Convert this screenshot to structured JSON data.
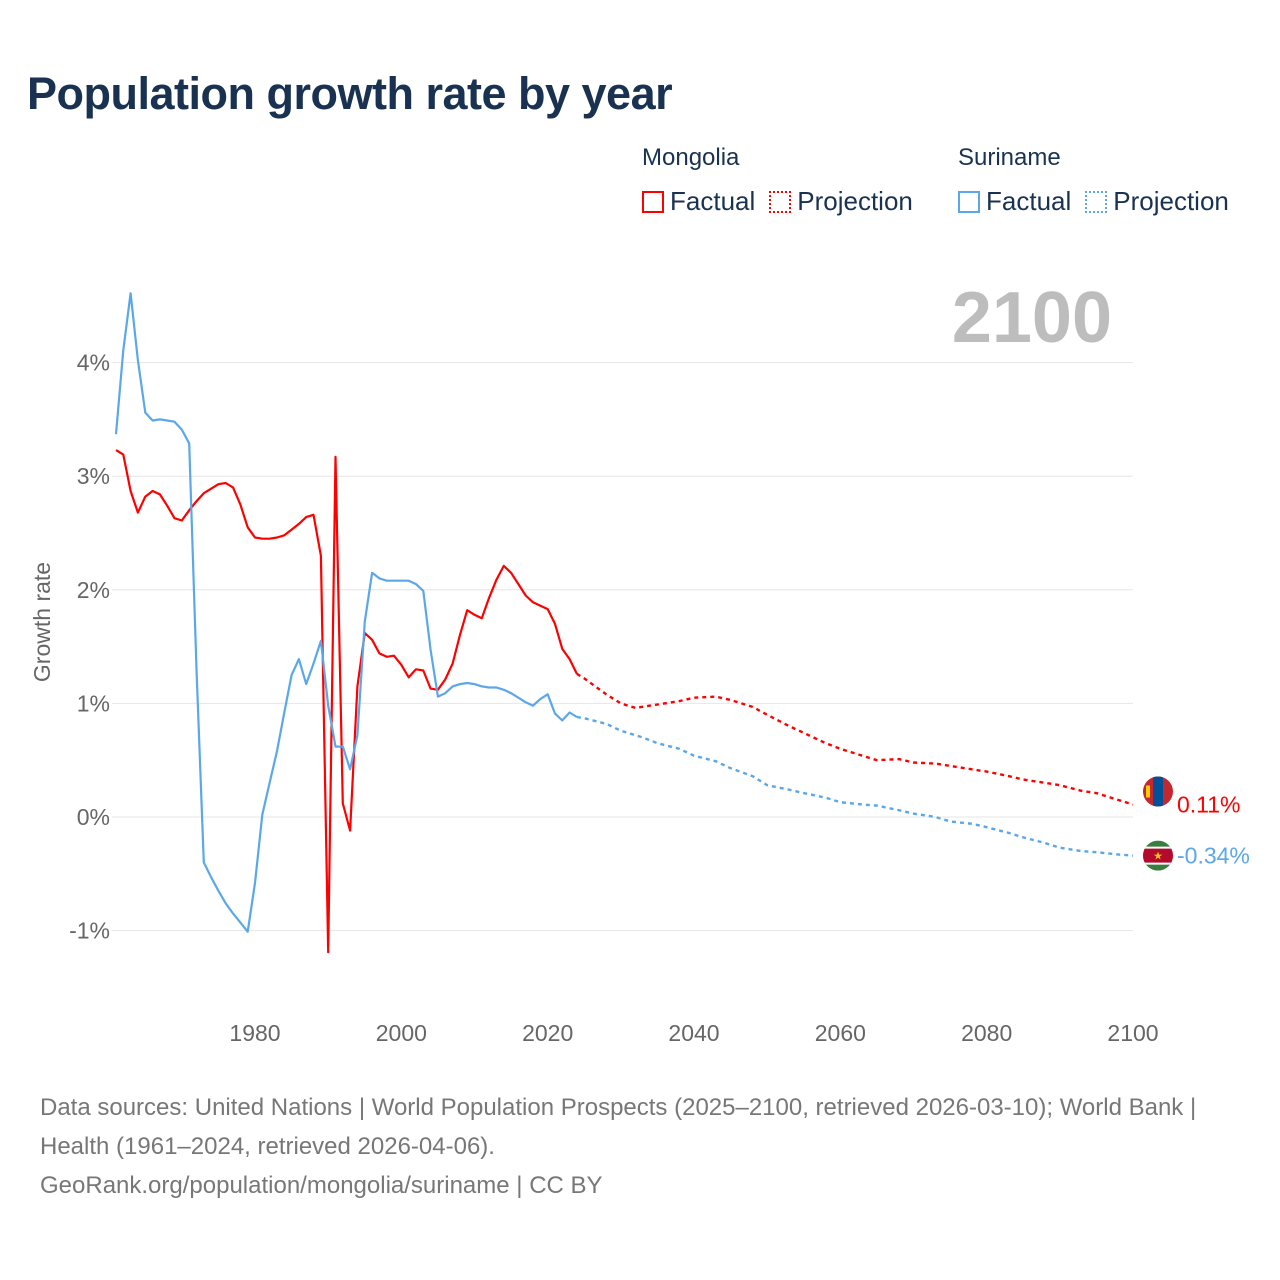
{
  "title": "Population growth rate by year",
  "legend": {
    "groups": [
      {
        "name": "Mongolia",
        "factual_label": "Factual",
        "projection_label": "Projection",
        "color": "#ff0000"
      },
      {
        "name": "Suriname",
        "factual_label": "Factual",
        "projection_label": "Projection",
        "color": "#5ba7ea"
      }
    ]
  },
  "current_year_label": "2100",
  "chart_data": {
    "type": "line",
    "title": "Population growth rate by year",
    "xlabel": "",
    "ylabel": "Growth rate",
    "xlim": [
      1961,
      2100
    ],
    "ylim": [
      -1.5,
      4.7
    ],
    "x_ticks": [
      1980,
      2000,
      2020,
      2040,
      2060,
      2080,
      2100
    ],
    "y_ticks": [
      -1,
      0,
      1,
      2,
      3,
      4
    ],
    "y_tick_labels": [
      "-1%",
      "0%",
      "1%",
      "2%",
      "3%",
      "4%"
    ],
    "grid": true,
    "series": [
      {
        "name": "Mongolia",
        "color": "#ff0000",
        "end_label": "0.11%",
        "factual": {
          "x": [
            1961,
            1962,
            1963,
            1964,
            1965,
            1966,
            1967,
            1968,
            1969,
            1970,
            1971,
            1972,
            1973,
            1974,
            1975,
            1976,
            1977,
            1978,
            1979,
            1980,
            1981,
            1982,
            1983,
            1984,
            1985,
            1986,
            1987,
            1988,
            1989,
            1990,
            1991,
            1992,
            1993,
            1994,
            1995,
            1996,
            1997,
            1998,
            1999,
            2000,
            2001,
            2002,
            2003,
            2004,
            2005,
            2006,
            2007,
            2008,
            2009,
            2010,
            2011,
            2012,
            2013,
            2014,
            2015,
            2016,
            2017,
            2018,
            2019,
            2020,
            2021,
            2022,
            2023,
            2024
          ],
          "y": [
            3.23,
            3.19,
            2.87,
            2.68,
            2.82,
            2.87,
            2.84,
            2.74,
            2.63,
            2.61,
            2.7,
            2.78,
            2.85,
            2.89,
            2.93,
            2.94,
            2.9,
            2.75,
            2.55,
            2.46,
            2.45,
            2.45,
            2.46,
            2.48,
            2.53,
            2.58,
            2.64,
            2.66,
            2.3,
            -1.19,
            3.17,
            0.12,
            -0.12,
            1.15,
            1.62,
            1.56,
            1.44,
            1.41,
            1.42,
            1.34,
            1.23,
            1.3,
            1.29,
            1.13,
            1.12,
            1.21,
            1.35,
            1.6,
            1.82,
            1.78,
            1.75,
            1.93,
            2.09,
            2.21,
            2.15,
            2.05,
            1.95,
            1.89,
            1.86,
            1.83,
            1.7,
            1.48,
            1.39,
            1.26
          ]
        },
        "projection": {
          "x": [
            2024,
            2025,
            2028,
            2030,
            2032,
            2035,
            2038,
            2040,
            2043,
            2045,
            2048,
            2050,
            2053,
            2055,
            2058,
            2060,
            2063,
            2065,
            2068,
            2070,
            2073,
            2075,
            2078,
            2080,
            2083,
            2085,
            2088,
            2090,
            2093,
            2095,
            2098,
            2100
          ],
          "y": [
            1.26,
            1.22,
            1.08,
            1.0,
            0.96,
            0.99,
            1.02,
            1.05,
            1.06,
            1.03,
            0.97,
            0.9,
            0.8,
            0.74,
            0.65,
            0.6,
            0.54,
            0.5,
            0.51,
            0.48,
            0.47,
            0.45,
            0.42,
            0.4,
            0.36,
            0.33,
            0.3,
            0.28,
            0.23,
            0.21,
            0.15,
            0.11
          ]
        }
      },
      {
        "name": "Suriname",
        "color": "#5ba7ea",
        "end_label": "-0.34%",
        "factual": {
          "x": [
            1961,
            1962,
            1963,
            1964,
            1965,
            1966,
            1967,
            1968,
            1969,
            1970,
            1971,
            1972,
            1973,
            1974,
            1975,
            1976,
            1977,
            1978,
            1979,
            1980,
            1981,
            1982,
            1983,
            1984,
            1985,
            1986,
            1987,
            1988,
            1989,
            1990,
            1991,
            1992,
            1993,
            1994,
            1995,
            1996,
            1997,
            1998,
            1999,
            2000,
            2001,
            2002,
            2003,
            2004,
            2005,
            2006,
            2007,
            2008,
            2009,
            2010,
            2011,
            2012,
            2013,
            2014,
            2015,
            2016,
            2017,
            2018,
            2019,
            2020,
            2021,
            2022,
            2023,
            2024
          ],
          "y": [
            3.37,
            4.11,
            4.61,
            4.02,
            3.56,
            3.49,
            3.5,
            3.49,
            3.48,
            3.41,
            3.29,
            1.3,
            -0.4,
            -0.53,
            -0.65,
            -0.76,
            -0.85,
            -0.93,
            -1.01,
            -0.58,
            0.02,
            0.3,
            0.58,
            0.92,
            1.25,
            1.39,
            1.17,
            1.35,
            1.55,
            0.98,
            0.62,
            0.62,
            0.42,
            0.72,
            1.72,
            2.15,
            2.1,
            2.08,
            2.08,
            2.08,
            2.08,
            2.05,
            1.99,
            1.47,
            1.06,
            1.09,
            1.15,
            1.17,
            1.18,
            1.17,
            1.15,
            1.14,
            1.14,
            1.12,
            1.09,
            1.05,
            1.01,
            0.98,
            1.04,
            1.08,
            0.91,
            0.85,
            0.92,
            0.88
          ]
        },
        "projection": {
          "x": [
            2024,
            2025,
            2028,
            2030,
            2033,
            2035,
            2038,
            2040,
            2043,
            2045,
            2048,
            2050,
            2053,
            2055,
            2058,
            2060,
            2063,
            2065,
            2068,
            2070,
            2073,
            2075,
            2078,
            2080,
            2083,
            2085,
            2088,
            2090,
            2093,
            2095,
            2098,
            2100
          ],
          "y": [
            0.88,
            0.87,
            0.82,
            0.76,
            0.7,
            0.65,
            0.6,
            0.54,
            0.49,
            0.43,
            0.36,
            0.28,
            0.24,
            0.21,
            0.17,
            0.13,
            0.11,
            0.1,
            0.06,
            0.03,
            0.0,
            -0.04,
            -0.06,
            -0.09,
            -0.14,
            -0.18,
            -0.23,
            -0.27,
            -0.3,
            -0.31,
            -0.33,
            -0.34
          ]
        }
      }
    ]
  },
  "footer": {
    "sources": "Data sources: United Nations | World Population Prospects (2025–2100, retrieved 2026-03-10); World Bank | Health (1961–2024, retrieved 2026-04-06).",
    "attribution": "GeoRank.org/population/mongolia/suriname | CC BY"
  }
}
